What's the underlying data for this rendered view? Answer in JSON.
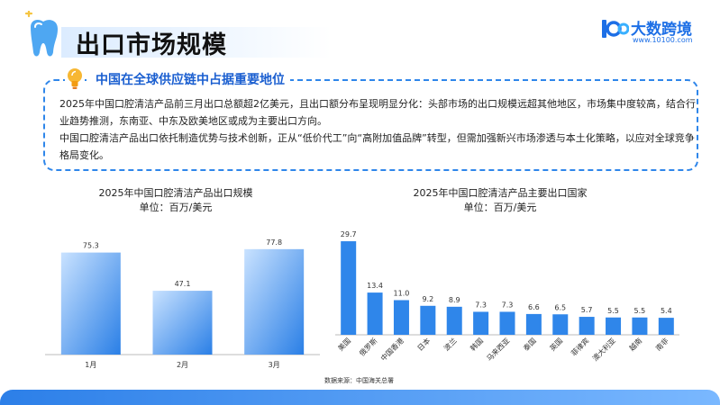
{
  "header": {
    "title": "出口市场规模",
    "logo_name": "大数跨境",
    "logo_url": "www.10100.com",
    "brand_color": "#1d6fe6"
  },
  "info": {
    "heading": "中国在全球供应链中占据重要地位",
    "para1": "2025年中国口腔清洁产品前三月出口总额超2亿美元，且出口额分布呈现明显分化：头部市场的出口规模远超其他地区，市场集中度较高，结合行业趋势推测，东南亚、中东及欧美地区或成为主要出口方向。",
    "para2": "中国口腔清洁产品出口依托制造优势与技术创新，正从“低价代工”向“高附加值品牌”转型，但需加强新兴市场渗透与本土化策略，以应对全球竞争格局变化。"
  },
  "chart_data": [
    {
      "type": "bar",
      "title": "2025年中国口腔清洁产品出口规模",
      "subtitle": "单位：百万/美元",
      "categories": [
        "1月",
        "2月",
        "3月"
      ],
      "values": [
        75.3,
        47.1,
        77.8
      ],
      "ylim": [
        0,
        85
      ],
      "grid": false,
      "bar_gradient": [
        "#c9e2ff",
        "#2a7fe6"
      ]
    },
    {
      "type": "bar",
      "title": "2025年中国口腔清洁产品主要出口国家",
      "subtitle": "单位：百万/美元",
      "categories": [
        "美国",
        "俄罗斯",
        "中国香港",
        "日本",
        "波兰",
        "韩国",
        "马来西亚",
        "泰国",
        "英国",
        "菲律宾",
        "澳大利亚",
        "越南",
        "南非"
      ],
      "values": [
        29.7,
        13.4,
        11.0,
        9.2,
        8.9,
        7.3,
        7.3,
        6.6,
        6.5,
        5.7,
        5.5,
        5.5,
        5.4
      ],
      "ylim": [
        0,
        32
      ],
      "grid": false,
      "bar_color": "#2f86ea"
    }
  ],
  "footer": {
    "source": "数据来源：中国海关总署"
  }
}
